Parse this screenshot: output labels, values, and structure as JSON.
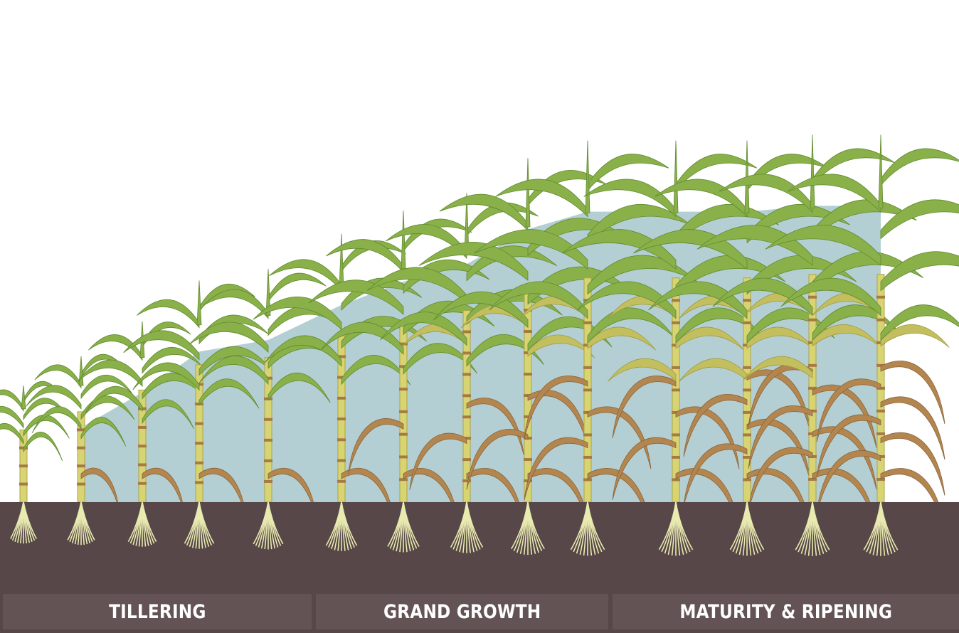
{
  "stages": [
    {
      "label": "TILLERING"
    },
    {
      "label": "GRAND GROWTH"
    },
    {
      "label": "MATURITY & RIPENING"
    }
  ],
  "plants": [
    {
      "stage": "TILLERING",
      "height": 20,
      "dry_leaves": 0,
      "yellow_leaves": 0
    },
    {
      "stage": "TILLERING",
      "height": 25,
      "dry_leaves": 1,
      "yellow_leaves": 0
    },
    {
      "stage": "TILLERING",
      "height": 31,
      "dry_leaves": 1,
      "yellow_leaves": 0
    },
    {
      "stage": "TILLERING",
      "height": 38,
      "dry_leaves": 1,
      "yellow_leaves": 0
    },
    {
      "stage": "TILLERING",
      "height": 40,
      "dry_leaves": 1,
      "yellow_leaves": 0
    },
    {
      "stage": "GRAND GROWTH",
      "height": 46,
      "dry_leaves": 1,
      "yellow_leaves": 0
    },
    {
      "stage": "GRAND GROWTH",
      "height": 50,
      "dry_leaves": 2,
      "yellow_leaves": 0
    },
    {
      "stage": "GRAND GROWTH",
      "height": 53,
      "dry_leaves": 3,
      "yellow_leaves": 1
    },
    {
      "stage": "GRAND GROWTH",
      "height": 59,
      "dry_leaves": 3,
      "yellow_leaves": 2
    },
    {
      "stage": "GRAND GROWTH",
      "height": 62,
      "dry_leaves": 4,
      "yellow_leaves": 2
    },
    {
      "stage": "MATURITY & RIPENING",
      "height": 62,
      "dry_leaves": 4,
      "yellow_leaves": 3
    },
    {
      "stage": "MATURITY & RIPENING",
      "height": 62,
      "dry_leaves": 5,
      "yellow_leaves": 3
    },
    {
      "stage": "MATURITY & RIPENING",
      "height": 63,
      "dry_leaves": 6,
      "yellow_leaves": 3
    },
    {
      "stage": "MATURITY & RIPENING",
      "height": 63,
      "dry_leaves": 7,
      "yellow_leaves": 2
    }
  ],
  "colors": {
    "soil": "#574748",
    "label_bar": "#645354",
    "sky_band": "#b4cfd3",
    "leaf_green": "#8ab04a",
    "leaf_green_outline": "#5f8a2e",
    "leaf_yellow": "#c4bf5e",
    "leaf_dry": "#b38650",
    "stalk": "#d9d472",
    "node": "#a67a45",
    "root": "#e8eab0",
    "label_text": "#ffffff"
  }
}
